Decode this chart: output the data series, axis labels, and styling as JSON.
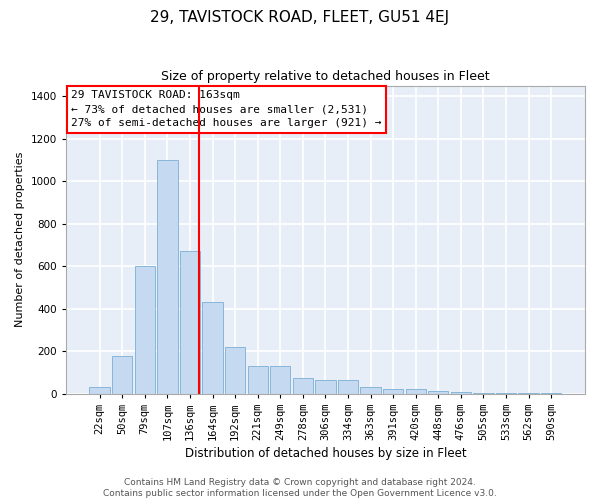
{
  "title": "29, TAVISTOCK ROAD, FLEET, GU51 4EJ",
  "subtitle": "Size of property relative to detached houses in Fleet",
  "xlabel": "Distribution of detached houses by size in Fleet",
  "ylabel": "Number of detached properties",
  "bar_color": "#c5d9f0",
  "bar_edge_color": "#7bafd4",
  "background_color": "#e8eef8",
  "grid_color": "#ffffff",
  "categories": [
    "22sqm",
    "50sqm",
    "79sqm",
    "107sqm",
    "136sqm",
    "164sqm",
    "192sqm",
    "221sqm",
    "249sqm",
    "278sqm",
    "306sqm",
    "334sqm",
    "363sqm",
    "391sqm",
    "420sqm",
    "448sqm",
    "476sqm",
    "505sqm",
    "533sqm",
    "562sqm",
    "590sqm"
  ],
  "values": [
    30,
    175,
    600,
    1100,
    670,
    430,
    220,
    130,
    130,
    75,
    65,
    65,
    30,
    20,
    20,
    10,
    5,
    2,
    1,
    1,
    1
  ],
  "ylim": [
    0,
    1450
  ],
  "yticks": [
    0,
    200,
    400,
    600,
    800,
    1000,
    1200,
    1400
  ],
  "property_label": "29 TAVISTOCK ROAD: 163sqm",
  "annotation_line1": "← 73% of detached houses are smaller (2,531)",
  "annotation_line2": "27% of semi-detached houses are larger (921) →",
  "footer_line1": "Contains HM Land Registry data © Crown copyright and database right 2024.",
  "footer_line2": "Contains public sector information licensed under the Open Government Licence v3.0.",
  "title_fontsize": 11,
  "subtitle_fontsize": 9,
  "xlabel_fontsize": 8.5,
  "ylabel_fontsize": 8,
  "tick_fontsize": 7.5,
  "footer_fontsize": 6.5,
  "annotation_fontsize": 8
}
